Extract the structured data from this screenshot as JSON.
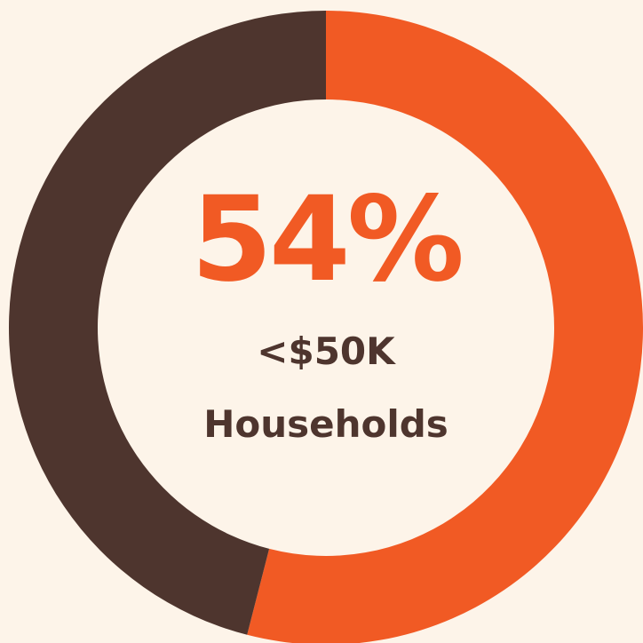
{
  "chart_data": {
    "type": "donut",
    "categories": [
      "<$50K Households",
      null
    ],
    "values": [
      54,
      46
    ],
    "value_labels": [
      "54%",
      null
    ],
    "colors": [
      "#f15a24",
      "#4e352e"
    ]
  }
}
